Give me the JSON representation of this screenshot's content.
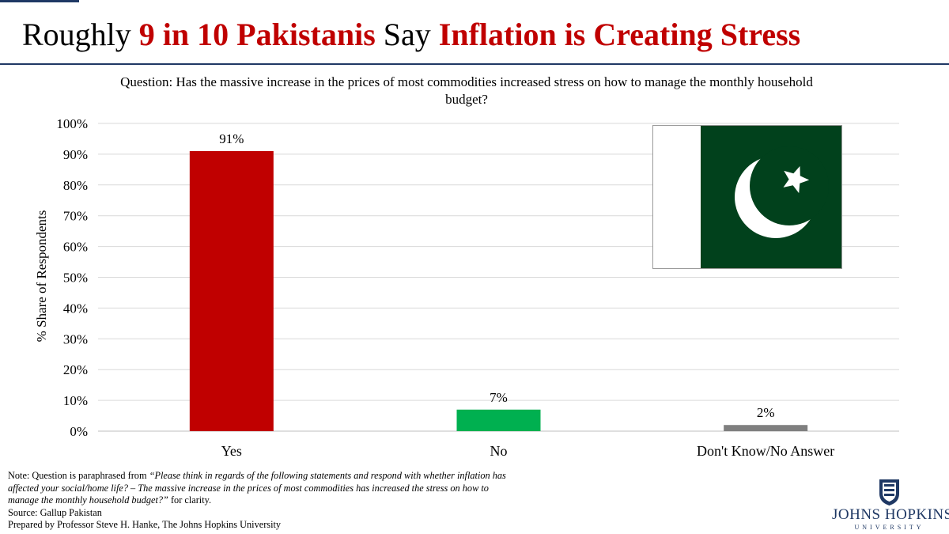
{
  "title": {
    "part1": "Roughly ",
    "part2": "9 in 10 Pakistanis",
    "part3": " Say ",
    "part4": "Inflation is Creating Stress"
  },
  "question": "Question: Has the massive increase in the prices of most commodities increased stress on how to manage the monthly household budget?",
  "colors": {
    "yes": "#c00000",
    "no": "#00b050",
    "dk": "#7f7f7f",
    "accent": "#1f3864"
  },
  "chart_data": {
    "type": "bar",
    "categories": [
      "Yes",
      "No",
      "Don't Know/No Answer"
    ],
    "values": [
      91,
      7,
      2
    ],
    "data_labels": [
      "91%",
      "7%",
      "2%"
    ],
    "ylabel": "% Share of Respondents",
    "ylim": [
      0,
      100
    ],
    "yticks": [
      "0%",
      "10%",
      "20%",
      "30%",
      "40%",
      "50%",
      "60%",
      "70%",
      "80%",
      "90%",
      "100%"
    ],
    "grid": true
  },
  "flag": {
    "icon": "pakistan-flag",
    "green": "#01411c",
    "white": "#ffffff"
  },
  "note": {
    "prefix": "Note: Question is paraphrased from ",
    "quote": "“Please think in regards of the following statements and respond with whether inflation has affected your social/home life? – The massive increase in the prices of most commodities has increased the stress on how to manage the monthly household budget?”",
    "suffix": " for clarity.",
    "source": "Source:  Gallup  Pakistan",
    "prepared": "Prepared by Professor Steve H. Hanke, The Johns Hopkins University"
  },
  "logo": {
    "name": "JOHNS HOPKINS",
    "sub": "UNIVERSITY"
  }
}
